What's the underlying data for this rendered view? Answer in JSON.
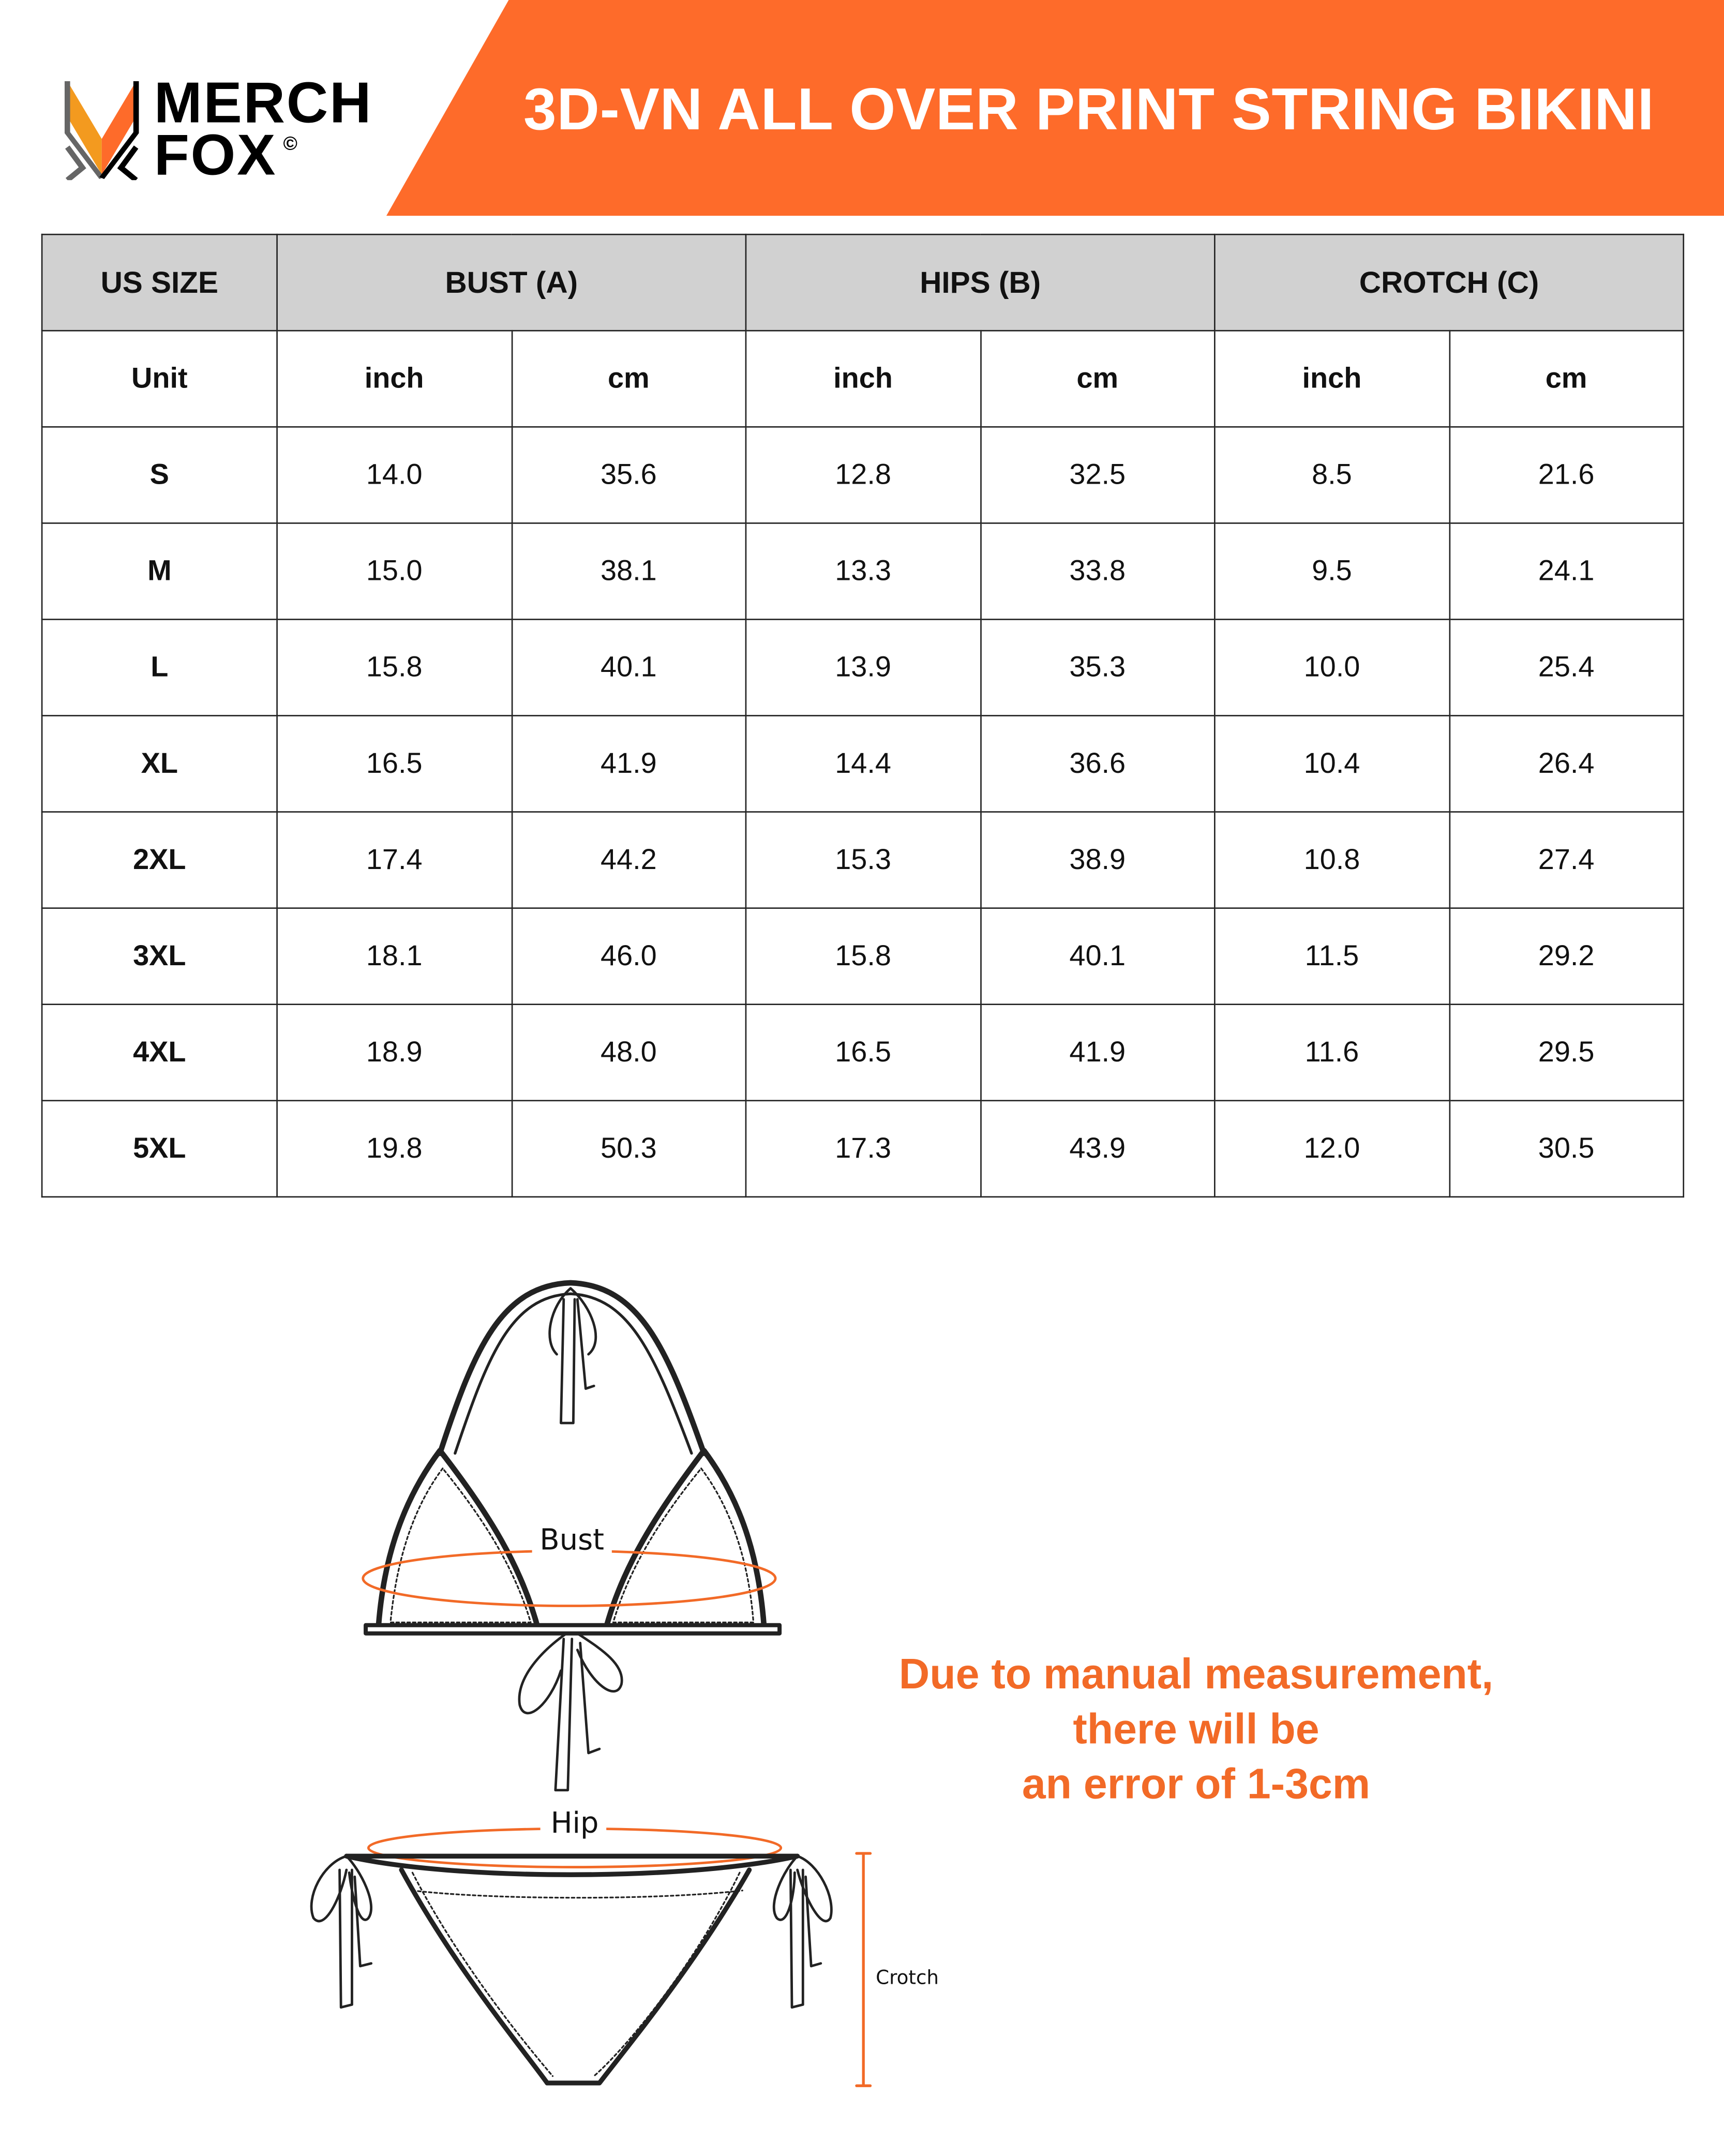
{
  "brand": {
    "name_line1": "MERCH",
    "name_line2": "FOX",
    "copyright": "©"
  },
  "colors": {
    "accent": "#fe6b2a",
    "header_bg": "#d1d1d1",
    "note": "#f26a27"
  },
  "title": "3D-VN ALL OVER PRINT STRING BIKINI",
  "table": {
    "headers": [
      "US SIZE",
      "BUST (A)",
      "HIPS (B)",
      "CROTCH (C)"
    ],
    "unit_row": [
      "Unit",
      "inch",
      "cm",
      "inch",
      "cm",
      "inch",
      "cm"
    ],
    "rows": [
      [
        "S",
        "14.0",
        "35.6",
        "12.8",
        "32.5",
        "8.5",
        "21.6"
      ],
      [
        "M",
        "15.0",
        "38.1",
        "13.3",
        "33.8",
        "9.5",
        "24.1"
      ],
      [
        "L",
        "15.8",
        "40.1",
        "13.9",
        "35.3",
        "10.0",
        "25.4"
      ],
      [
        "XL",
        "16.5",
        "41.9",
        "14.4",
        "36.6",
        "10.4",
        "26.4"
      ],
      [
        "2XL",
        "17.4",
        "44.2",
        "15.3",
        "38.9",
        "10.8",
        "27.4"
      ],
      [
        "3XL",
        "18.1",
        "46.0",
        "15.8",
        "40.1",
        "11.5",
        "29.2"
      ],
      [
        "4XL",
        "18.9",
        "48.0",
        "16.5",
        "41.9",
        "11.6",
        "29.5"
      ],
      [
        "5XL",
        "19.8",
        "50.3",
        "17.3",
        "43.9",
        "12.0",
        "30.5"
      ]
    ]
  },
  "diagram": {
    "bust_label": "Bust",
    "hip_label": "Hip",
    "crotch_label": "Crotch"
  },
  "note": {
    "line1": "Due to manual measurement,",
    "line2": "there will be",
    "line3": "an error of 1-3cm"
  }
}
